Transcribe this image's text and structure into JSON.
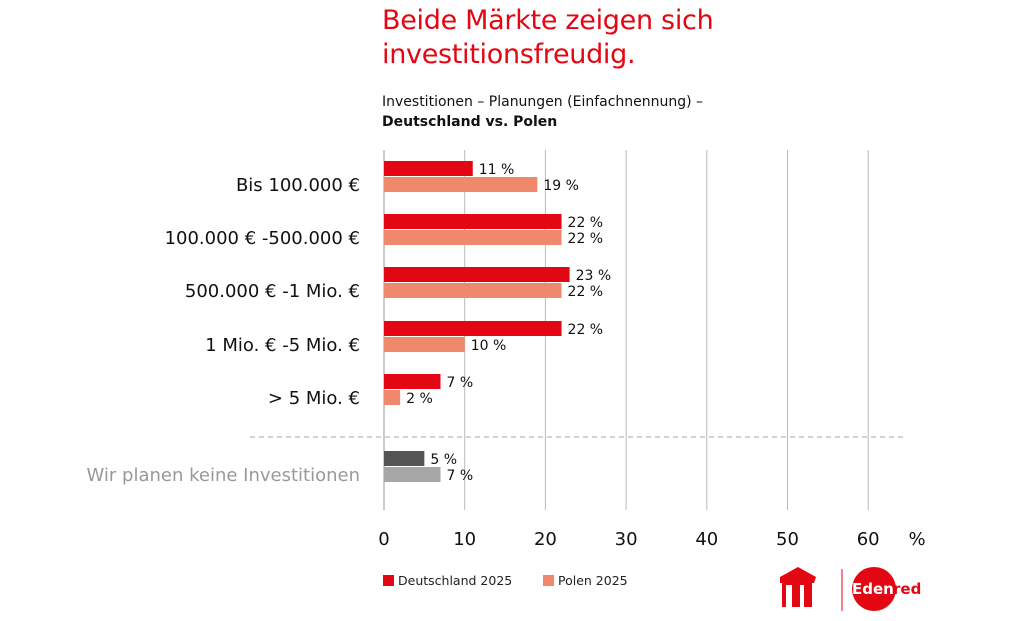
{
  "title": "Beide Märkte zeigen sich investitionsfreudig.",
  "subtitle_line1": "Investitionen – Planungen (Einfachnennung) –",
  "subtitle_line2": "Deutschland vs. Polen",
  "chart_data": {
    "type": "bar",
    "orientation": "horizontal",
    "categories": [
      "Bis 100.000 €",
      "100.000 € -500.000 €",
      "500.000 € -1 Mio. €",
      "1 Mio. € -5 Mio. €",
      "> 5 Mio. €",
      "Wir planen keine Investitionen"
    ],
    "series": [
      {
        "name": "Deutschland 2025",
        "values": [
          11,
          22,
          23,
          22,
          7,
          5
        ],
        "labels": [
          "11 %",
          "22 %",
          "23 %",
          "22 %",
          "7 %",
          "5 %"
        ],
        "color": "#e30613",
        "color_last": "#555555"
      },
      {
        "name": "Polen 2025",
        "values": [
          19,
          22,
          22,
          10,
          2,
          7
        ],
        "labels": [
          "19 %",
          "22 %",
          "22 %",
          "10 %",
          "2 %",
          "7 %"
        ],
        "color": "#f0896b",
        "color_last": "#a6a6a6"
      }
    ],
    "xticks": [
      "0",
      "10",
      "20",
      "30",
      "40",
      "50",
      "60"
    ],
    "xunit": "%",
    "xlim": [
      0,
      65
    ],
    "grid": true,
    "legend": "bottom-left"
  },
  "logos": {
    "left": "UTA",
    "right": "Edenred"
  }
}
